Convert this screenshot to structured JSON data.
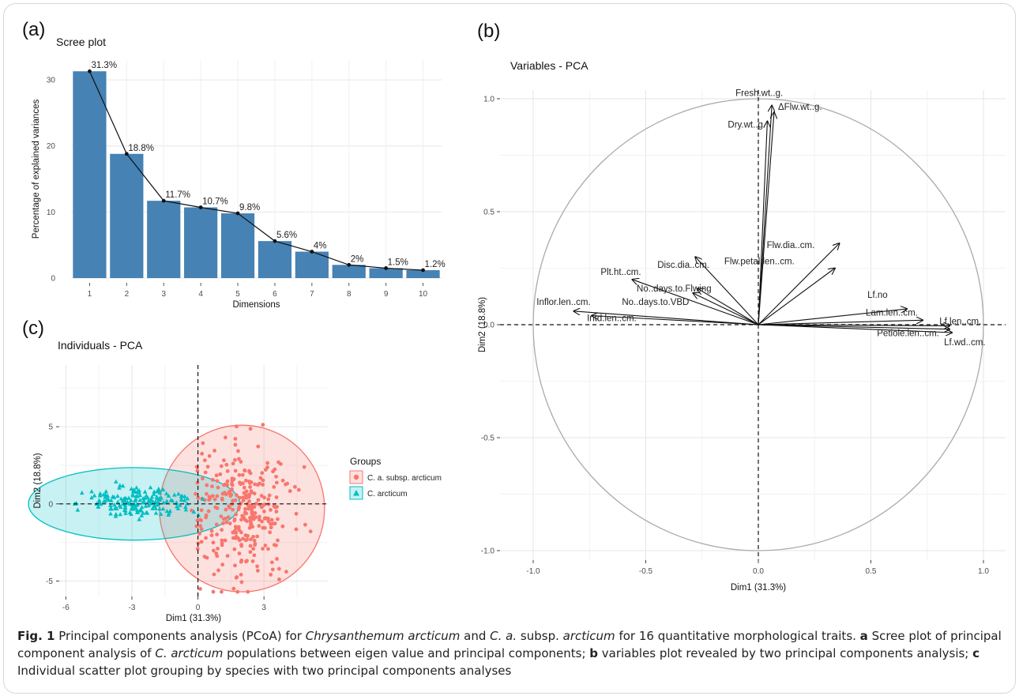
{
  "panels": {
    "a": "(a)",
    "b": "(b)",
    "c": "(c)"
  },
  "caption": {
    "fig": "Fig. 1",
    "parts": [
      {
        "t": "Principal components analysis (PCoA) for "
      },
      {
        "t": "Chrysanthemum arcticum",
        "i": true
      },
      {
        "t": " and "
      },
      {
        "t": "C. a.",
        "i": true
      },
      {
        "t": " subsp. "
      },
      {
        "t": "arcticum",
        "i": true
      },
      {
        "t": " for 16 quantitative morphological traits. "
      },
      {
        "t": "a",
        "b": true
      },
      {
        "t": " Scree plot of principal component analysis of "
      },
      {
        "t": "C. arcticum",
        "i": true
      },
      {
        "t": " populations between eigen value and principal components; "
      },
      {
        "t": "b",
        "b": true
      },
      {
        "t": " variables plot revealed by two principal components analysis; "
      },
      {
        "t": "c",
        "b": true
      },
      {
        "t": " Individual scatter plot grouping by species with two principal components analyses"
      }
    ]
  },
  "chart_data": [
    {
      "id": "scree",
      "type": "bar",
      "title": "Scree plot",
      "xlabel": "Dimensions",
      "ylabel": "Percentage of explained variances",
      "categories": [
        "1",
        "2",
        "3",
        "4",
        "5",
        "6",
        "7",
        "8",
        "9",
        "10"
      ],
      "values": [
        31.3,
        18.8,
        11.7,
        10.7,
        9.8,
        5.6,
        4.0,
        2.0,
        1.5,
        1.2
      ],
      "labels": [
        "31.3%",
        "18.8%",
        "11.7%",
        "10.7%",
        "9.8%",
        "5.6%",
        "4%",
        "2%",
        "1.5%",
        "1.2%"
      ],
      "yticks": [
        "0",
        "10",
        "20",
        "30"
      ],
      "ylim": [
        0,
        33
      ],
      "bar_color": "#4682B4",
      "line": true,
      "grid": true
    },
    {
      "id": "variables",
      "type": "scatter",
      "subtype": "arrows",
      "title": "Variables - PCA",
      "xlabel": "Dim1 (31.3%)",
      "ylabel": "Dim2 (18.8%)",
      "xlim": [
        -1.0,
        1.0
      ],
      "ylim": [
        -1.0,
        1.0
      ],
      "xticks": [
        "-1.0",
        "-0.5",
        "0.0",
        "0.5",
        "1.0"
      ],
      "yticks": [
        "-1.0",
        "-0.5",
        "0.0",
        "0.5",
        "1.0"
      ],
      "circle": true,
      "grid": true,
      "arrows": [
        {
          "name": "Fresh.wt..g.",
          "x": 0.06,
          "y": 0.97
        },
        {
          "name": "ΔFlw.wt..g.",
          "x": 0.07,
          "y": 0.94
        },
        {
          "name": "Dry.wt..g.",
          "x": 0.04,
          "y": 0.9
        },
        {
          "name": "Flw.dia..cm.",
          "x": 0.36,
          "y": 0.36
        },
        {
          "name": "Flw.petal.len..cm.",
          "x": 0.34,
          "y": 0.25
        },
        {
          "name": "Disc.dia..cm.",
          "x": -0.28,
          "y": 0.3
        },
        {
          "name": "Plt.ht..cm.",
          "x": -0.56,
          "y": 0.2
        },
        {
          "name": "No..days.to.Flwing",
          "x": -0.27,
          "y": 0.16
        },
        {
          "name": "No..days.to.VBD",
          "x": -0.29,
          "y": 0.14
        },
        {
          "name": "Inflor.len..cm.",
          "x": -0.82,
          "y": 0.06
        },
        {
          "name": "Intd.len..cm.",
          "x": -0.74,
          "y": 0.04
        },
        {
          "name": "Lf.no",
          "x": 0.66,
          "y": 0.07
        },
        {
          "name": "Lam.len..cm.",
          "x": 0.73,
          "y": 0.02
        },
        {
          "name": "Lf.len..cm.",
          "x": 0.85,
          "y": -0.005
        },
        {
          "name": "Petiole.len..cm.",
          "x": 0.85,
          "y": -0.02
        },
        {
          "name": "Lf.wd..cm.",
          "x": 0.86,
          "y": -0.035
        }
      ]
    },
    {
      "id": "individuals",
      "type": "scatter",
      "title": "Individuals - PCA",
      "xlabel": "Dim1 (31.3%)",
      "ylabel": "Dim2 (18.8%)",
      "xlim": [
        -6.3,
        5.9
      ],
      "ylim": [
        -6.0,
        9.0
      ],
      "xticks": [
        "-6",
        "-3",
        "0",
        "3"
      ],
      "yticks": [
        "-5",
        "0",
        "5"
      ],
      "legend_title": "Groups",
      "legend_position": "right",
      "grid": true,
      "series": [
        {
          "name": "C. a. subsp. arcticum",
          "marker": "circle",
          "color": "#F8766D",
          "count": 320,
          "center": [
            2.0,
            -0.4
          ],
          "spread": [
            1.1,
            2.2
          ],
          "ellipse": {
            "cx": 2.0,
            "cy": -0.3,
            "rx": 3.75,
            "ry": 5.4
          }
        },
        {
          "name": "C. arcticum",
          "marker": "triangle",
          "color": "#00BFC4",
          "count": 180,
          "center": [
            -2.6,
            0.1
          ],
          "spread": [
            1.2,
            0.5
          ],
          "ellipse": {
            "cx": -2.9,
            "cy": 0.0,
            "rx": 4.8,
            "ry": 2.35
          }
        }
      ]
    }
  ]
}
